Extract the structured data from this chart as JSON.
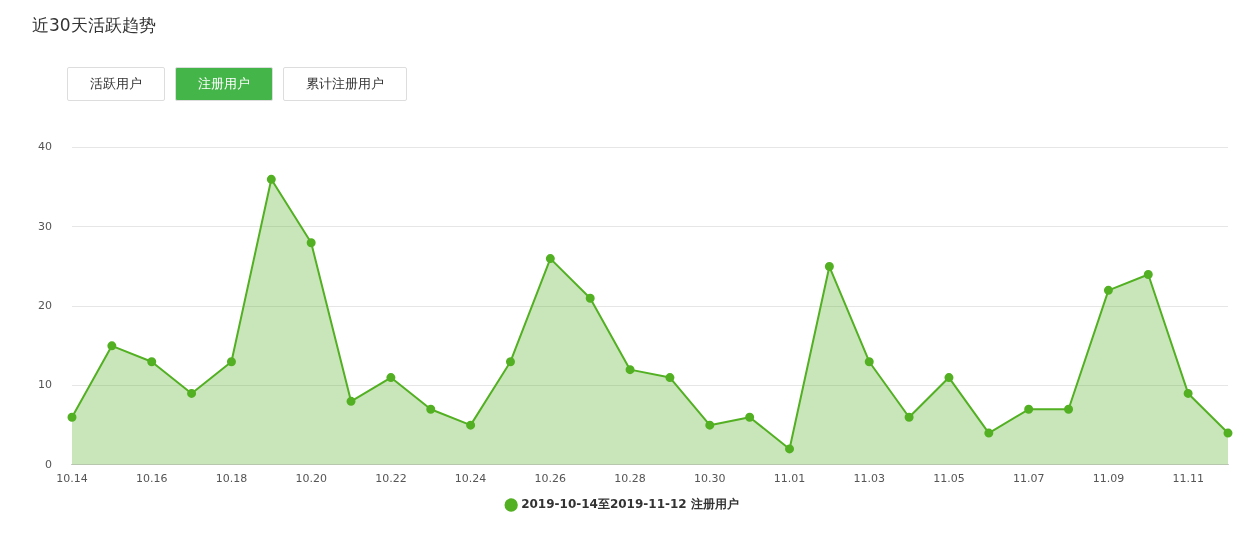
{
  "chart_data": {
    "type": "area",
    "title": "近30天活跃趋势",
    "annotations": [
      "活跃用户",
      "注册用户",
      "累计注册用户"
    ],
    "categories": [
      "10.14",
      null,
      "10.16",
      null,
      "10.18",
      null,
      "10.20",
      null,
      "10.22",
      null,
      "10.24",
      null,
      "10.26",
      null,
      "10.28",
      null,
      "10.30",
      null,
      "11.01",
      null,
      "11.03",
      null,
      "11.05",
      null,
      "11.07",
      null,
      "11.09",
      null,
      "11.11",
      null
    ],
    "series": [
      {
        "name": "2019-10-14至2019-11-12 注册用户",
        "color": "#52b022",
        "values": [
          6,
          15,
          13,
          9,
          13,
          36,
          28,
          8,
          11,
          7,
          5,
          13,
          26,
          21,
          12,
          11,
          5,
          6,
          2,
          25,
          13,
          6,
          11,
          4,
          7,
          7,
          22,
          24,
          9,
          4
        ]
      }
    ],
    "ylim": [
      0,
      40
    ],
    "yticks": [
      0,
      10,
      20,
      30,
      40
    ],
    "grid": "y",
    "legend": "bottom",
    "marker": "circle"
  }
}
